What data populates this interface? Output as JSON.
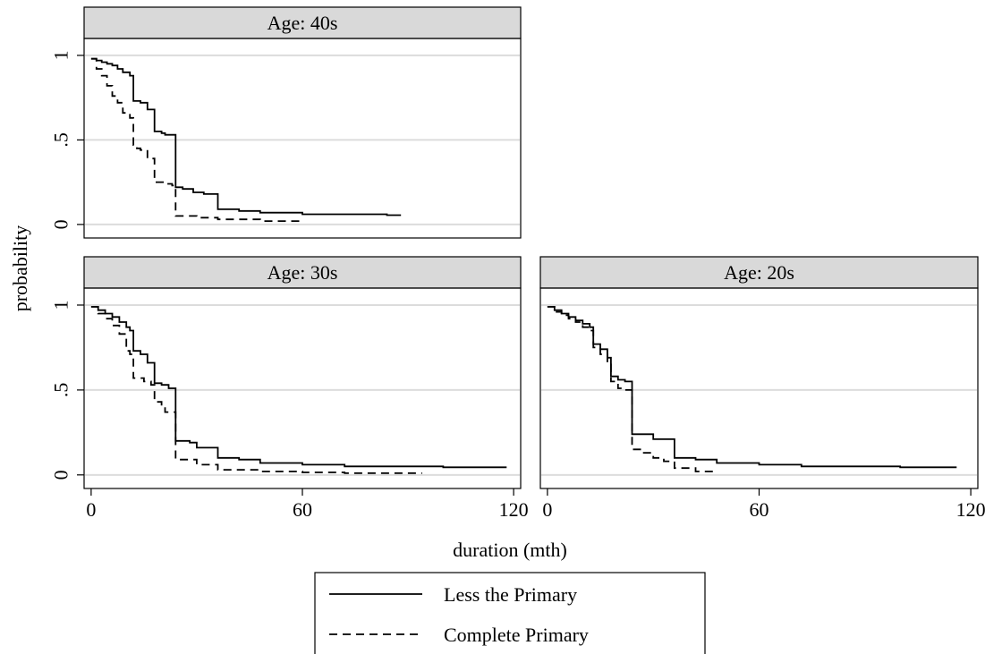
{
  "chart_data": {
    "type": "line",
    "subtype": "step",
    "ylabel": "probability",
    "xlabel": "duration (mth)",
    "x_ticks": [
      0,
      60,
      120
    ],
    "y_ticks": [
      {
        "value": 0,
        "label": "0"
      },
      {
        "value": 0.5,
        "label": ".5"
      },
      {
        "value": 1,
        "label": "1"
      }
    ],
    "xlim": [
      -2,
      122
    ],
    "ylim": [
      -0.08,
      1.1
    ],
    "grid": true,
    "legend_position": "bottom",
    "legend": [
      {
        "label": "Less the Primary",
        "style": "solid"
      },
      {
        "label": "Complete Primary",
        "style": "dashed"
      }
    ],
    "panels": [
      {
        "title": "Age: 40s",
        "series": [
          {
            "style": "solid",
            "points": [
              [
                0,
                0.98
              ],
              [
                1.5,
                0.97
              ],
              [
                3,
                0.96
              ],
              [
                4.5,
                0.95
              ],
              [
                6,
                0.94
              ],
              [
                7.5,
                0.92
              ],
              [
                9,
                0.9
              ],
              [
                11,
                0.88
              ],
              [
                12,
                0.73
              ],
              [
                14,
                0.72
              ],
              [
                16,
                0.68
              ],
              [
                18,
                0.55
              ],
              [
                20,
                0.54
              ],
              [
                21,
                0.53
              ],
              [
                24,
                0.22
              ],
              [
                26,
                0.21
              ],
              [
                29,
                0.19
              ],
              [
                32,
                0.18
              ],
              [
                36,
                0.09
              ],
              [
                42,
                0.08
              ],
              [
                48,
                0.07
              ],
              [
                60,
                0.06
              ],
              [
                72,
                0.06
              ],
              [
                84,
                0.055
              ],
              [
                88,
                0.055
              ]
            ]
          },
          {
            "style": "dashed",
            "points": [
              [
                0,
                0.98
              ],
              [
                1.5,
                0.92
              ],
              [
                3,
                0.88
              ],
              [
                4.5,
                0.82
              ],
              [
                6,
                0.76
              ],
              [
                7.5,
                0.72
              ],
              [
                9,
                0.66
              ],
              [
                11,
                0.63
              ],
              [
                12,
                0.47
              ],
              [
                13,
                0.45
              ],
              [
                14,
                0.44
              ],
              [
                16,
                0.39
              ],
              [
                18,
                0.25
              ],
              [
                21,
                0.24
              ],
              [
                23,
                0.23
              ],
              [
                24,
                0.05
              ],
              [
                30,
                0.04
              ],
              [
                36,
                0.03
              ],
              [
                48,
                0.02
              ],
              [
                60,
                0.02
              ]
            ]
          }
        ]
      },
      {
        "title": "Age: 30s",
        "series": [
          {
            "style": "solid",
            "points": [
              [
                0,
                0.99
              ],
              [
                2,
                0.97
              ],
              [
                4,
                0.95
              ],
              [
                6,
                0.93
              ],
              [
                8,
                0.9
              ],
              [
                10,
                0.87
              ],
              [
                11,
                0.85
              ],
              [
                12,
                0.73
              ],
              [
                14,
                0.71
              ],
              [
                16,
                0.66
              ],
              [
                18,
                0.54
              ],
              [
                20,
                0.53
              ],
              [
                22,
                0.51
              ],
              [
                24,
                0.2
              ],
              [
                28,
                0.19
              ],
              [
                30,
                0.16
              ],
              [
                36,
                0.1
              ],
              [
                42,
                0.09
              ],
              [
                48,
                0.07
              ],
              [
                60,
                0.06
              ],
              [
                72,
                0.05
              ],
              [
                84,
                0.05
              ],
              [
                100,
                0.045
              ],
              [
                118,
                0.045
              ]
            ]
          },
          {
            "style": "dashed",
            "points": [
              [
                0,
                0.99
              ],
              [
                2,
                0.95
              ],
              [
                4,
                0.92
              ],
              [
                6,
                0.88
              ],
              [
                8,
                0.83
              ],
              [
                10,
                0.73
              ],
              [
                11,
                0.71
              ],
              [
                12,
                0.57
              ],
              [
                15,
                0.55
              ],
              [
                17,
                0.53
              ],
              [
                18,
                0.43
              ],
              [
                20,
                0.4
              ],
              [
                21,
                0.37
              ],
              [
                24,
                0.09
              ],
              [
                30,
                0.06
              ],
              [
                36,
                0.03
              ],
              [
                48,
                0.02
              ],
              [
                60,
                0.015
              ],
              [
                72,
                0.01
              ],
              [
                84,
                0.01
              ],
              [
                94,
                0.01
              ]
            ]
          }
        ]
      },
      {
        "title": "Age: 20s",
        "series": [
          {
            "style": "solid",
            "points": [
              [
                0,
                0.99
              ],
              [
                2,
                0.97
              ],
              [
                4,
                0.95
              ],
              [
                6,
                0.93
              ],
              [
                8,
                0.91
              ],
              [
                10,
                0.89
              ],
              [
                12,
                0.87
              ],
              [
                13,
                0.77
              ],
              [
                15,
                0.74
              ],
              [
                17,
                0.69
              ],
              [
                18,
                0.58
              ],
              [
                20,
                0.56
              ],
              [
                22,
                0.55
              ],
              [
                24,
                0.24
              ],
              [
                30,
                0.21
              ],
              [
                36,
                0.1
              ],
              [
                42,
                0.09
              ],
              [
                48,
                0.07
              ],
              [
                60,
                0.06
              ],
              [
                72,
                0.05
              ],
              [
                84,
                0.05
              ],
              [
                100,
                0.045
              ],
              [
                116,
                0.045
              ]
            ]
          },
          {
            "style": "dashed",
            "points": [
              [
                0,
                0.99
              ],
              [
                2,
                0.96
              ],
              [
                4,
                0.94
              ],
              [
                6,
                0.92
              ],
              [
                8,
                0.9
              ],
              [
                10,
                0.87
              ],
              [
                12,
                0.85
              ],
              [
                13,
                0.75
              ],
              [
                15,
                0.71
              ],
              [
                17,
                0.65
              ],
              [
                18,
                0.55
              ],
              [
                20,
                0.51
              ],
              [
                22,
                0.5
              ],
              [
                24,
                0.15
              ],
              [
                27,
                0.13
              ],
              [
                30,
                0.1
              ],
              [
                33,
                0.08
              ],
              [
                36,
                0.04
              ],
              [
                42,
                0.02
              ],
              [
                48,
                0.02
              ]
            ]
          }
        ]
      }
    ]
  }
}
